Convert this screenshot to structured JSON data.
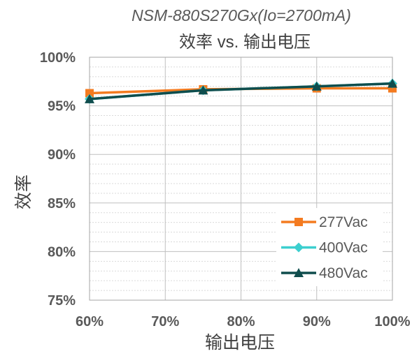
{
  "chart_data": {
    "type": "line",
    "title": "NSM-880S270Gx(Io=2700mA)",
    "subtitle": "效率 vs. 输出电压",
    "xlabel": "输出电压",
    "ylabel": "效率",
    "x": [
      60,
      75,
      90,
      100
    ],
    "xlim": [
      60,
      100
    ],
    "ylim": [
      75,
      100
    ],
    "x_ticks": [
      60,
      70,
      80,
      90,
      100
    ],
    "x_tick_labels": [
      "60%",
      "70%",
      "80%",
      "90%",
      "100%"
    ],
    "y_ticks": [
      75,
      80,
      85,
      90,
      95,
      100
    ],
    "y_tick_labels": [
      "75%",
      "80%",
      "85%",
      "90%",
      "95%",
      "100%"
    ],
    "grid": true,
    "legend_position": "bottom-right",
    "series": [
      {
        "name": "277Vac",
        "color": "#F47B20",
        "marker": "square",
        "values": [
          96.3,
          96.7,
          96.8,
          96.8
        ]
      },
      {
        "name": "400Vac",
        "color": "#3CCFCF",
        "marker": "diamond",
        "values": [
          95.7,
          96.6,
          97.0,
          97.3
        ]
      },
      {
        "name": "480Vac",
        "color": "#0F4D4D",
        "marker": "triangle",
        "values": [
          95.7,
          96.6,
          97.0,
          97.3
        ]
      }
    ]
  }
}
